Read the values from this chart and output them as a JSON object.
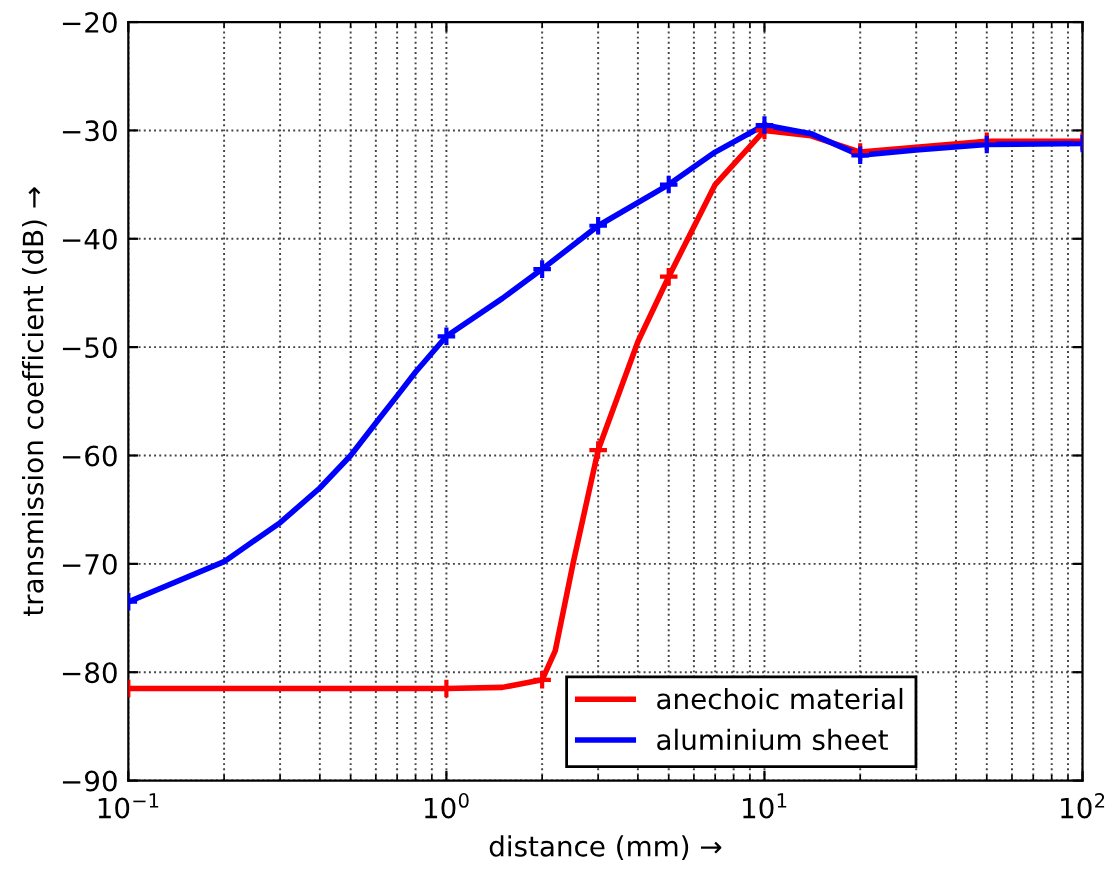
{
  "chart_data": {
    "type": "line",
    "xlabel": "distance (mm) →",
    "ylabel": "transmission coefficient (dB) →",
    "log": "x",
    "xlim": [
      0.1,
      100
    ],
    "ylim": [
      -90,
      -20
    ],
    "xticks": [
      {
        "value": 0.1,
        "label": "10$^{−1}$"
      },
      {
        "value": 1,
        "label": "10$^{0}$"
      },
      {
        "value": 10,
        "label": "10$^{1}$"
      },
      {
        "value": 100,
        "label": "10$^{2}$"
      }
    ],
    "yticks": [
      -90,
      -80,
      -70,
      -60,
      -50,
      -40,
      -30,
      -20
    ],
    "grid": true,
    "legend": "bottom right",
    "line_style": "solid",
    "series": [
      {
        "name": "anechoic material",
        "color": "#ff0000",
        "marker": "none",
        "x": [
          0.1,
          0.5,
          1,
          1.5,
          2,
          2.2,
          2.5,
          3,
          4,
          5,
          7,
          10,
          14,
          20,
          50,
          100
        ],
        "values": [
          -81.5,
          -81.5,
          -81.5,
          -81.4,
          -80.7,
          -78,
          -70,
          -59.5,
          -49.5,
          -43.5,
          -35,
          -30,
          -30.5,
          -32,
          -31,
          -31
        ]
      },
      {
        "name": "aluminium sheet",
        "color": "#0000ff",
        "marker": "none",
        "x": [
          0.1,
          0.2,
          0.3,
          0.4,
          0.5,
          0.6,
          0.7,
          0.8,
          1,
          1.5,
          2,
          3,
          5,
          7,
          10,
          14,
          20,
          30,
          50,
          100
        ],
        "values": [
          -73.5,
          -69.8,
          -66.2,
          -63,
          -60,
          -57,
          -54.5,
          -52.3,
          -49,
          -45.5,
          -42.8,
          -38.8,
          -35,
          -32,
          -29.5,
          -30.3,
          -32.3,
          -31.8,
          -31.3,
          -31.2
        ]
      },
      {
        "color": "#ff0000",
        "type": "scatter",
        "marker": "cross",
        "x": [
          0.1,
          1,
          2,
          3,
          5,
          10,
          20,
          50,
          100
        ],
        "values": [
          -81.5,
          -81.5,
          -80.7,
          -59.5,
          -43.5,
          -30,
          -32,
          -31,
          -31
        ]
      },
      {
        "color": "#0000ff",
        "type": "scatter",
        "marker": "cross",
        "x": [
          0.1,
          1,
          2,
          3,
          5,
          10,
          20,
          50,
          100
        ],
        "values": [
          -73.5,
          -49,
          -42.8,
          -38.8,
          -35,
          -29.5,
          -32.3,
          -31.3,
          -31.2
        ]
      }
    ]
  }
}
